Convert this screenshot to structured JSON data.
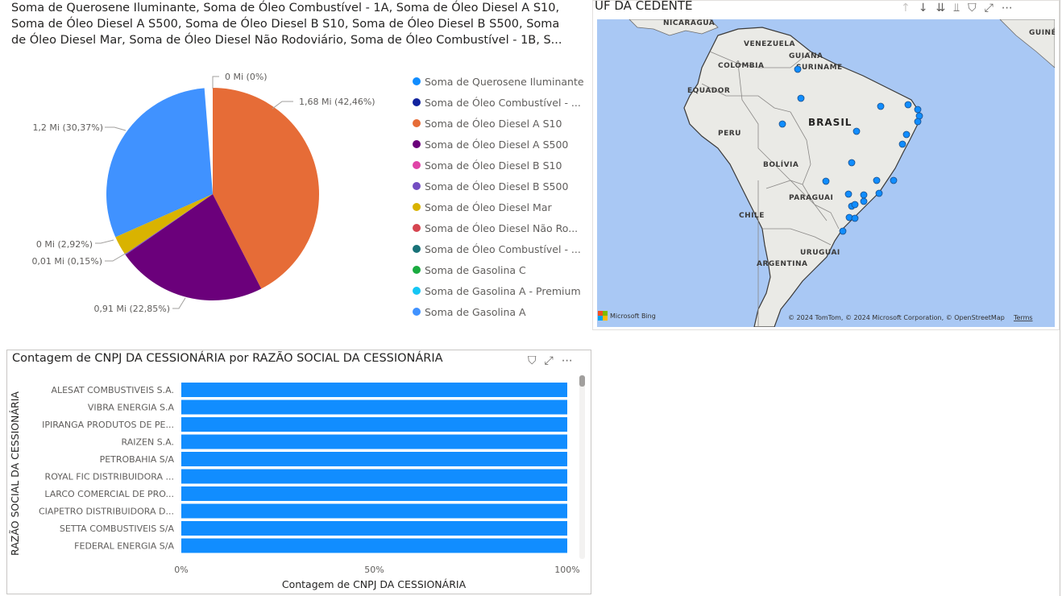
{
  "pie_visual": {
    "title_lines": [
      "Soma de Querosene Iluminante, Soma de Óleo Combustível - 1A, Soma de Óleo Diesel A S10,",
      "Soma de Óleo Diesel A S500, Soma de Óleo Diesel B S10, Soma de Óleo Diesel B S500, Soma",
      "de Óleo Diesel Mar, Soma de Óleo Diesel Não Rodoviário, Soma de Óleo Combustível - 1B, S..."
    ],
    "slice_labels": {
      "top": "0 Mi (0%)",
      "right": "1,68 Mi (42,46%)",
      "left": "1,2 Mi (30,37%)",
      "small1": "0 Mi (2,92%)",
      "small2": "0,01 Mi (0,15%)",
      "bottom": "0,91 Mi (22,85%)"
    },
    "legend": [
      {
        "label": "Soma de Querosene Iluminante",
        "color": "#118DFF"
      },
      {
        "label": "Soma de Óleo Combustível - ...",
        "color": "#12239E"
      },
      {
        "label": "Soma de Óleo Diesel A S10",
        "color": "#E66C37"
      },
      {
        "label": "Soma de Óleo Diesel A S500",
        "color": "#6B007B"
      },
      {
        "label": "Soma de Óleo Diesel B S10",
        "color": "#E044A7"
      },
      {
        "label": "Soma de Óleo Diesel B S500",
        "color": "#744EC2"
      },
      {
        "label": "Soma de Óleo Diesel Mar",
        "color": "#D9B300"
      },
      {
        "label": "Soma de Óleo Diesel Não Ro...",
        "color": "#D64550"
      },
      {
        "label": "Soma de Óleo Combustível - ...",
        "color": "#197278"
      },
      {
        "label": "Soma de Gasolina C",
        "color": "#1AAB40"
      },
      {
        "label": "Soma de Gasolina A - Premium",
        "color": "#15C6F4"
      },
      {
        "label": "Soma de Gasolina A",
        "color": "#4092FF"
      }
    ]
  },
  "chart_data": [
    {
      "type": "pie",
      "title": "",
      "slices": [
        {
          "label": "Soma de Querosene Iluminante",
          "value": 0,
          "percent": 0
        },
        {
          "label": "Soma de Óleo Diesel A S10",
          "value": 1.68,
          "percent": 42.46
        },
        {
          "label": "Soma de Óleo Diesel A S500",
          "value": 0.91,
          "percent": 22.85
        },
        {
          "label": "Soma de Óleo Diesel B S500",
          "value": 0.01,
          "percent": 0.15
        },
        {
          "label": "Soma de Óleo Diesel Mar",
          "value": 0,
          "percent": 2.92
        },
        {
          "label": "Soma de Gasolina A",
          "value": 1.2,
          "percent": 30.37
        }
      ]
    },
    {
      "type": "bar",
      "title": "Contagem de CNPJ DA CESSIONÁRIA por RAZÃO SOCIAL DA CESSIONÁRIA",
      "categories": [
        "ALESAT COMBUSTIVEIS S.A.",
        "VIBRA ENERGIA S.A",
        "IPIRANGA PRODUTOS DE PE...",
        "RAIZEN S.A.",
        "PETROBAHIA S/A",
        "ROYAL FIC DISTRIBUIDORA ...",
        "LARCO COMERCIAL DE PRO...",
        "CIAPETRO DISTRIBUIDORA D...",
        "SETTA COMBUSTIVEIS S/A",
        "FEDERAL ENERGIA S/A"
      ],
      "values": [
        100,
        100,
        100,
        100,
        100,
        100,
        100,
        100,
        100,
        100
      ],
      "xlabel": "Contagem de CNPJ DA CESSIONÁRIA",
      "ylabel": "RAZÃO SOCIAL DA CESSIONÁRIA",
      "xticks": [
        "0%",
        "50%",
        "100%"
      ],
      "xlim": [
        0,
        100
      ],
      "color": "#118DFF"
    }
  ],
  "map_visual": {
    "title": "UF DA CEDENTE",
    "labels": [
      "NICARAGUA",
      "GUINÉ",
      "VENEZUELA",
      "GUIANA",
      "COLÔMBIA",
      "SURINAME",
      "EQUADOR",
      "BRASIL",
      "PERU",
      "BOLÍVIA",
      "PARAGUAI",
      "CHILE",
      "URUGUAI",
      "ARGENTINA"
    ],
    "attribution": "© 2024 TomTom, © 2024 Microsoft Corporation, © OpenStreetMap",
    "terms": "Terms",
    "brand": "Microsoft Bing",
    "point_color": "#118DFF"
  }
}
